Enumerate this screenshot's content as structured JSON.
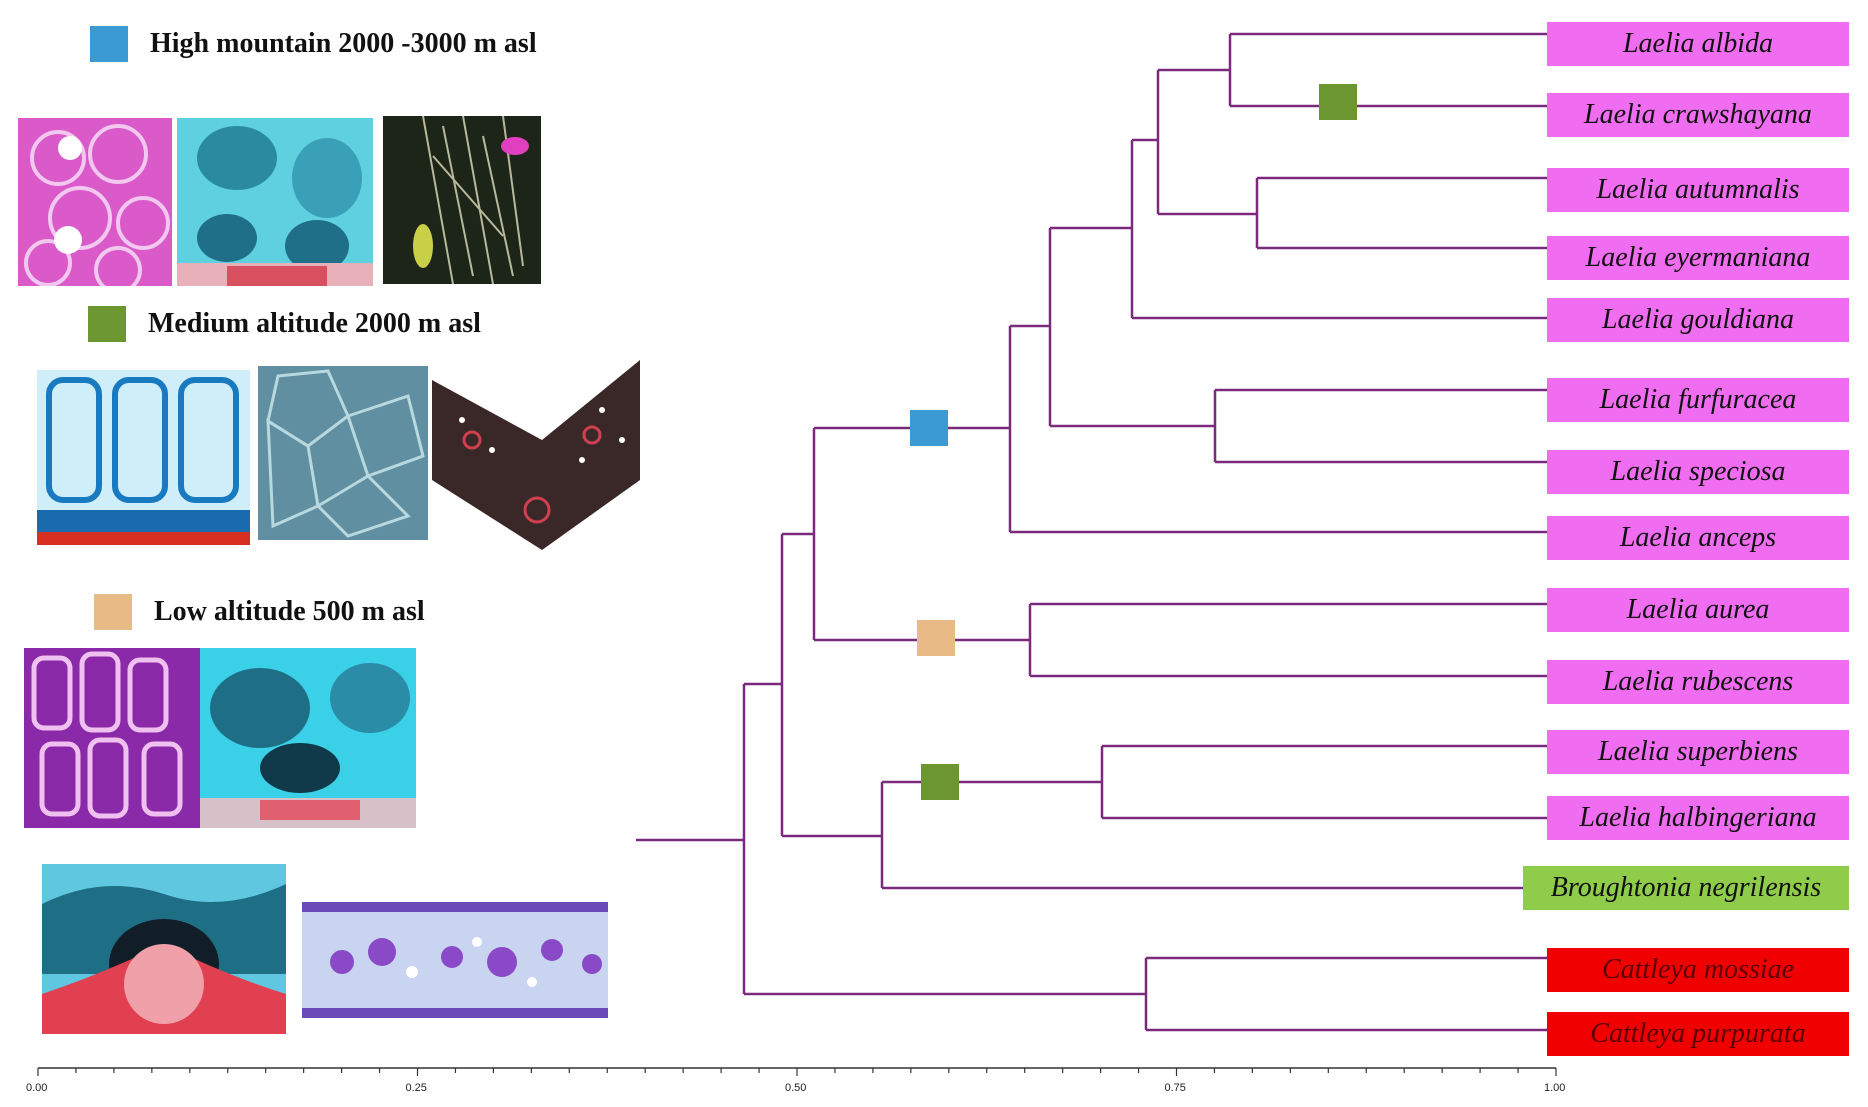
{
  "colors": {
    "branch": "#7b2a7e",
    "high": "#3a9ad4",
    "medium": "#6b9630",
    "low": "#e8bb86",
    "laelia_label": "#f06cf0",
    "broughtonia_label": "#8fcc4a",
    "cattleya_label": "#f00000"
  },
  "legend": [
    {
      "key": "high",
      "text": "High mountain 2000 -3000 m asl",
      "color": "#3a9ad4"
    },
    {
      "key": "medium",
      "text": "Medium altitude 2000 m asl",
      "color": "#6b9630"
    },
    {
      "key": "low",
      "text": "Low altitude 500 m asl",
      "color": "#e8bb86"
    }
  ],
  "taxa": [
    {
      "name": "Laelia albida",
      "group": "laelia"
    },
    {
      "name": "Laelia  crawshayana",
      "group": "laelia"
    },
    {
      "name": "Laelia autumnalis",
      "group": "laelia"
    },
    {
      "name": "Laelia  eyermaniana",
      "group": "laelia"
    },
    {
      "name": "Laelia  gouldiana",
      "group": "laelia"
    },
    {
      "name": "Laelia  furfuracea",
      "group": "laelia"
    },
    {
      "name": "Laelia  speciosa",
      "group": "laelia"
    },
    {
      "name": "Laelia anceps",
      "group": "laelia"
    },
    {
      "name": "Laelia aurea",
      "group": "laelia"
    },
    {
      "name": "Laelia rubescens",
      "group": "laelia"
    },
    {
      "name": "Laelia superbiens",
      "group": "laelia"
    },
    {
      "name": "Laelia halbingeriana",
      "group": "laelia"
    },
    {
      "name": "Broughtonia negrilensis",
      "group": "broughtonia"
    },
    {
      "name": "Cattleya mossiae",
      "group": "cattleya"
    },
    {
      "name": "Cattleya purpurata",
      "group": "cattleya"
    }
  ],
  "axis": {
    "ticks": [
      "0.00",
      "0.25",
      "0.50",
      "0.75",
      "1.00"
    ]
  },
  "images": [
    {
      "name": "high-cells-pink",
      "section": "high"
    },
    {
      "name": "high-cuticle-cyan",
      "section": "high"
    },
    {
      "name": "high-habitat-photo",
      "section": "high"
    },
    {
      "name": "medium-epidermis-blue",
      "section": "medium"
    },
    {
      "name": "medium-cells-gray",
      "section": "medium"
    },
    {
      "name": "medium-leaf-section",
      "section": "medium"
    },
    {
      "name": "low-cells-purple",
      "section": "low"
    },
    {
      "name": "low-stoma-cyan",
      "section": "low"
    },
    {
      "name": "low-stoma-red",
      "section": "low"
    },
    {
      "name": "low-leaf-section",
      "section": "low"
    }
  ]
}
